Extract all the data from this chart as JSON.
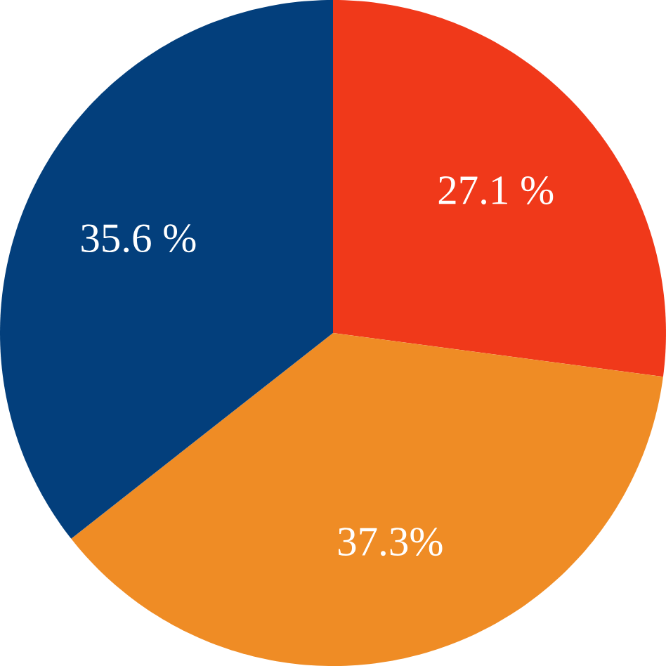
{
  "chart_data": {
    "type": "pie",
    "categories": [
      null,
      null,
      null
    ],
    "values": [
      27.1,
      37.3,
      35.6
    ],
    "colors": [
      "#f0391a",
      "#ef8c25",
      "#033f7c"
    ],
    "value_labels": [
      "27.1 %",
      "37.3%",
      "35.6 %"
    ]
  }
}
